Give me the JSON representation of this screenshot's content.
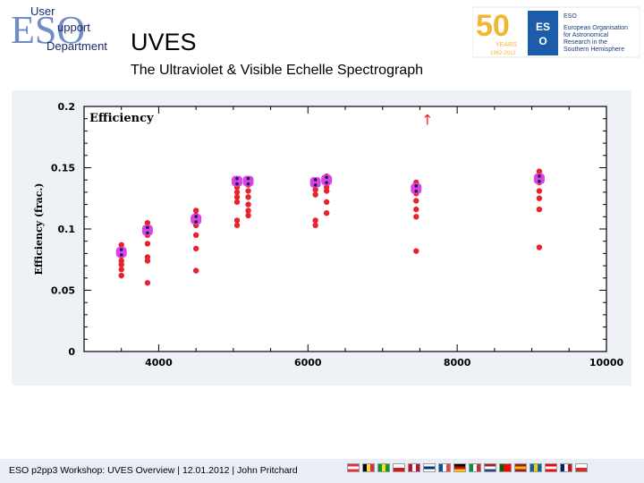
{
  "header": {
    "logo_line1": "User",
    "logo_line2": "upport",
    "logo_line3": "Department",
    "logo_letters": "ESO",
    "title": "UVES",
    "subtitle": "The Ultraviolet & Visible Echelle Spectrograph",
    "eso_logo": {
      "anniversary_number": "50",
      "anniversary_text": "YEARS",
      "anniversary_years": "1962-2012",
      "org_abbrev": "ESO",
      "org_lines": [
        "European Organisation",
        "for Astronomical",
        "Research in the",
        "Southern Hemisphere"
      ]
    }
  },
  "chart_data": {
    "type": "scatter",
    "title": "Efficiency",
    "xlabel": "",
    "ylabel": "Efficiency  (frac.)",
    "xlim": [
      3000,
      10000
    ],
    "ylim": [
      0,
      0.2
    ],
    "xticks": [
      "4000",
      "6000",
      "8000",
      "10000"
    ],
    "xtick_values": [
      4000,
      6000,
      8000,
      10000
    ],
    "yticks": [
      "0",
      "0.05",
      "0.1",
      "0.15",
      "0.2"
    ],
    "ytick_values": [
      0,
      0.05,
      0.1,
      0.15,
      0.2
    ],
    "arrow_label": "↑",
    "arrow_x": 7600,
    "arrow_y": 0.185,
    "groups": [
      {
        "x": 3500,
        "mean": 0.081,
        "points": [
          0.087,
          0.083,
          0.078,
          0.074,
          0.071,
          0.067,
          0.062
        ]
      },
      {
        "x": 3850,
        "mean": 0.099,
        "points": [
          0.105,
          0.101,
          0.095,
          0.088,
          0.077,
          0.074,
          0.056
        ]
      },
      {
        "x": 4500,
        "mean": 0.108,
        "points": [
          0.115,
          0.111,
          0.106,
          0.103,
          0.095,
          0.084,
          0.066
        ]
      },
      {
        "x": 5050,
        "mean": 0.139,
        "points": [
          0.141,
          0.138,
          0.134,
          0.13,
          0.126,
          0.122,
          0.107,
          0.103
        ]
      },
      {
        "x": 5200,
        "mean": 0.139,
        "points": [
          0.141,
          0.136,
          0.131,
          0.126,
          0.12,
          0.115,
          0.111
        ]
      },
      {
        "x": 6100,
        "mean": 0.138,
        "points": [
          0.14,
          0.136,
          0.132,
          0.128,
          0.107,
          0.103
        ]
      },
      {
        "x": 6250,
        "mean": 0.14,
        "points": [
          0.143,
          0.139,
          0.134,
          0.131,
          0.122,
          0.113
        ]
      },
      {
        "x": 7450,
        "mean": 0.133,
        "points": [
          0.138,
          0.133,
          0.129,
          0.123,
          0.116,
          0.11,
          0.082
        ]
      },
      {
        "x": 9100,
        "mean": 0.141,
        "points": [
          0.147,
          0.143,
          0.138,
          0.131,
          0.125,
          0.116,
          0.085
        ]
      }
    ],
    "colors": {
      "points": "#e8232c",
      "mean_marker": "#d944e6",
      "mean_dot": "#1a1a4a",
      "arrow": "#e8232c",
      "frame": "#000000",
      "grid": "#000000"
    },
    "grid": false
  },
  "footer": {
    "text": "ESO p2pp3 Workshop: UVES Overview | 12.01.2012 | John Pritchard",
    "flags": [
      {
        "name": "austria",
        "colors": [
          "#ed2939",
          "#ffffff",
          "#ed2939"
        ],
        "dir": "h"
      },
      {
        "name": "belgium",
        "colors": [
          "#000000",
          "#fae042",
          "#ed2939"
        ],
        "dir": "v"
      },
      {
        "name": "brazil",
        "colors": [
          "#009c3b",
          "#ffdf00",
          "#009c3b"
        ],
        "dir": "v"
      },
      {
        "name": "czech",
        "colors": [
          "#ffffff",
          "#d7141a"
        ],
        "dir": "h"
      },
      {
        "name": "denmark",
        "colors": [
          "#c60c30",
          "#ffffff",
          "#c60c30"
        ],
        "dir": "v"
      },
      {
        "name": "finland",
        "colors": [
          "#ffffff",
          "#003580",
          "#ffffff"
        ],
        "dir": "h"
      },
      {
        "name": "france",
        "colors": [
          "#0055a4",
          "#ffffff",
          "#ef4135"
        ],
        "dir": "v"
      },
      {
        "name": "germany",
        "colors": [
          "#000000",
          "#dd0000",
          "#ffce00"
        ],
        "dir": "h"
      },
      {
        "name": "italy",
        "colors": [
          "#009246",
          "#ffffff",
          "#ce2b37"
        ],
        "dir": "v"
      },
      {
        "name": "netherlands",
        "colors": [
          "#ae1c28",
          "#ffffff",
          "#21468b"
        ],
        "dir": "h"
      },
      {
        "name": "portugal",
        "colors": [
          "#006600",
          "#ff0000",
          "#ff0000"
        ],
        "dir": "v"
      },
      {
        "name": "spain",
        "colors": [
          "#aa151b",
          "#f1bf00",
          "#aa151b"
        ],
        "dir": "h"
      },
      {
        "name": "sweden",
        "colors": [
          "#006aa7",
          "#fecc00",
          "#006aa7"
        ],
        "dir": "v"
      },
      {
        "name": "switzerland",
        "colors": [
          "#ff0000",
          "#ffffff",
          "#ff0000"
        ],
        "dir": "h"
      },
      {
        "name": "uk",
        "colors": [
          "#012169",
          "#ffffff",
          "#c8102e"
        ],
        "dir": "v"
      },
      {
        "name": "chile",
        "colors": [
          "#ffffff",
          "#d52b1e"
        ],
        "dir": "h"
      }
    ]
  }
}
